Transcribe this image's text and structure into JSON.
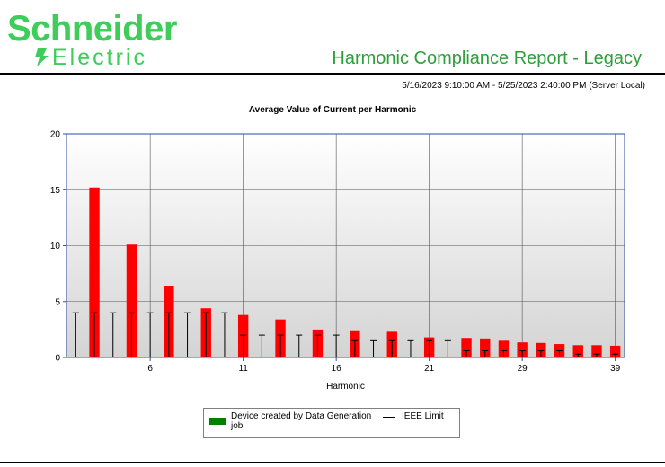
{
  "header": {
    "logo_top": "Schneider",
    "logo_bottom": "Electric",
    "report_title": "Harmonic Compliance Report - Legacy",
    "date_range": "5/16/2023 9:10:00 AM - 5/25/2023 2:40:00 PM (Server Local)"
  },
  "colors": {
    "brand": "#3dcd58",
    "title": "#2e9e3a",
    "bars": "#ff0000",
    "legend_swatch": "#008000",
    "frame": "#2b4ea2"
  },
  "chart_data": {
    "type": "bar",
    "title": "Average Value of Current per Harmonic",
    "xlabel": "Harmonic",
    "ylabel": "",
    "ylim": [
      0,
      20
    ],
    "yticks": [
      0,
      5,
      10,
      15,
      20
    ],
    "xtick_labels": [
      "6",
      "11",
      "16",
      "21",
      "29",
      "39"
    ],
    "grid": true,
    "legend_position": "bottom",
    "categories": [
      "2",
      "3",
      "4",
      "5",
      "6",
      "7",
      "8",
      "9",
      "10",
      "11",
      "12",
      "13",
      "14",
      "15",
      "16",
      "17",
      "18",
      "19",
      "20",
      "21",
      "22",
      "23",
      "25",
      "27",
      "29",
      "31",
      "33",
      "35",
      "37",
      "39"
    ],
    "series": [
      {
        "name": "Device created by Data Generation job",
        "values": [
          0,
          15.2,
          0,
          10.1,
          0,
          6.4,
          0,
          4.4,
          0,
          3.8,
          0,
          3.4,
          0,
          2.5,
          0,
          2.35,
          0,
          2.3,
          0,
          1.8,
          0,
          1.75,
          1.7,
          1.5,
          1.35,
          1.3,
          1.2,
          1.1,
          1.1,
          1.05
        ]
      },
      {
        "name": "IEEE Limit",
        "values": [
          4,
          4,
          4,
          4,
          4,
          4,
          4,
          4,
          4,
          2,
          2,
          2,
          2,
          2,
          2,
          1.5,
          1.5,
          1.5,
          1.5,
          1.5,
          1.5,
          0.6,
          0.6,
          0.6,
          0.6,
          0.6,
          0.6,
          0.3,
          0.3,
          0.3
        ]
      }
    ]
  }
}
